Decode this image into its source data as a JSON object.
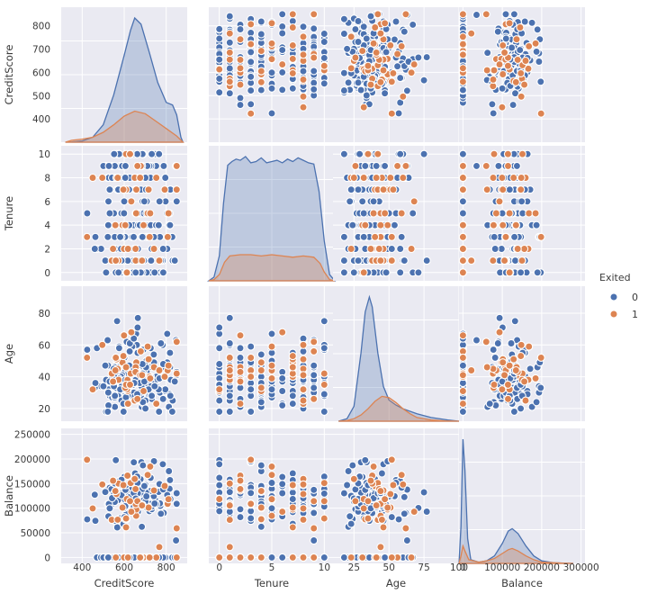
{
  "chart_data": {
    "type": "scatter",
    "title": "",
    "variables": [
      "CreditScore",
      "Tenure",
      "Age",
      "Balance"
    ],
    "ranges": {
      "CreditScore": [
        300,
        900
      ],
      "Tenure": [
        -1,
        11
      ],
      "Age": [
        10,
        100
      ],
      "Balance": [
        -10000,
        310000
      ]
    },
    "y_ranges": {
      "CreditScore": [
        300,
        880
      ],
      "Tenure": [
        -0.7,
        10.7
      ],
      "Age": [
        12,
        97
      ],
      "Balance": [
        -12000,
        262000
      ]
    },
    "ticks": {
      "CreditScore": [
        400,
        600,
        800
      ],
      "Tenure": [
        0,
        5,
        10
      ],
      "Age": [
        25,
        50,
        75,
        100
      ],
      "Balance": [
        0,
        100000,
        200000,
        300000
      ]
    },
    "y_ticks": {
      "CreditScore": [
        400,
        500,
        600,
        700,
        800
      ],
      "Tenure": [
        0,
        2,
        4,
        6,
        8,
        10
      ],
      "Age": [
        20,
        40,
        60,
        80
      ],
      "Balance": [
        0,
        50000,
        100000,
        150000,
        200000,
        250000
      ]
    },
    "x_tick_labels": [
      [
        "400",
        "600",
        "800"
      ],
      [
        "0",
        "5",
        "10"
      ],
      [
        "25",
        "50",
        "75",
        "100"
      ],
      [
        "0",
        "100000",
        "200000",
        "300000"
      ]
    ],
    "y_tick_labels": [
      [
        "400",
        "500",
        "600",
        "700",
        "800"
      ],
      [
        "0",
        "2",
        "4",
        "6",
        "8",
        "10"
      ],
      [
        "20",
        "40",
        "60",
        "80"
      ],
      [
        "0",
        "50000",
        "100000",
        "150000",
        "200000",
        "250000"
      ]
    ],
    "diagonal": {
      "type": "kde",
      "curves": {
        "CreditScore": {
          "0": [
            [
              320,
              0
            ],
            [
              350,
              0.003
            ],
            [
              400,
              0.01
            ],
            [
              450,
              0.04
            ],
            [
              500,
              0.14
            ],
            [
              550,
              0.38
            ],
            [
              600,
              0.7
            ],
            [
              630,
              0.9
            ],
            [
              650,
              1.0
            ],
            [
              680,
              0.95
            ],
            [
              720,
              0.72
            ],
            [
              760,
              0.48
            ],
            [
              800,
              0.32
            ],
            [
              830,
              0.3
            ],
            [
              850,
              0.22
            ],
            [
              870,
              0.04
            ],
            [
              880,
              0
            ]
          ],
          "1": [
            [
              320,
              0
            ],
            [
              350,
              0.015
            ],
            [
              400,
              0.025
            ],
            [
              450,
              0.04
            ],
            [
              500,
              0.08
            ],
            [
              550,
              0.14
            ],
            [
              600,
              0.21
            ],
            [
              650,
              0.25
            ],
            [
              700,
              0.23
            ],
            [
              750,
              0.17
            ],
            [
              800,
              0.11
            ],
            [
              850,
              0.05
            ],
            [
              880,
              0
            ]
          ]
        },
        "Tenure": {
          "0": [
            [
              -1,
              0
            ],
            [
              -0.5,
              0.03
            ],
            [
              0,
              0.2
            ],
            [
              0.4,
              0.62
            ],
            [
              0.8,
              0.93
            ],
            [
              1.2,
              0.96
            ],
            [
              1.6,
              0.98
            ],
            [
              2,
              0.97
            ],
            [
              2.5,
              1.0
            ],
            [
              3,
              0.95
            ],
            [
              3.5,
              0.96
            ],
            [
              4,
              0.99
            ],
            [
              4.5,
              0.95
            ],
            [
              5,
              0.96
            ],
            [
              5.5,
              0.97
            ],
            [
              6,
              0.95
            ],
            [
              6.5,
              0.98
            ],
            [
              7,
              0.96
            ],
            [
              7.5,
              0.99
            ],
            [
              8,
              0.97
            ],
            [
              8.5,
              0.95
            ],
            [
              9,
              0.94
            ],
            [
              9.5,
              0.72
            ],
            [
              10,
              0.32
            ],
            [
              10.5,
              0.05
            ],
            [
              11,
              0
            ]
          ],
          "1": [
            [
              -1,
              0
            ],
            [
              -0.5,
              0.01
            ],
            [
              0,
              0.05
            ],
            [
              0.5,
              0.15
            ],
            [
              1,
              0.2
            ],
            [
              2,
              0.21
            ],
            [
              3,
              0.21
            ],
            [
              4,
              0.2
            ],
            [
              5,
              0.21
            ],
            [
              6,
              0.2
            ],
            [
              7,
              0.19
            ],
            [
              8,
              0.2
            ],
            [
              9,
              0.19
            ],
            [
              9.6,
              0.14
            ],
            [
              10,
              0.07
            ],
            [
              10.5,
              0.01
            ],
            [
              11,
              0
            ]
          ]
        },
        "Age": {
          "0": [
            [
              14,
              0
            ],
            [
              20,
              0.02
            ],
            [
              25,
              0.12
            ],
            [
              30,
              0.55
            ],
            [
              33,
              0.88
            ],
            [
              36,
              1.0
            ],
            [
              38,
              0.92
            ],
            [
              42,
              0.55
            ],
            [
              46,
              0.28
            ],
            [
              50,
              0.17
            ],
            [
              55,
              0.13
            ],
            [
              60,
              0.1
            ],
            [
              70,
              0.06
            ],
            [
              80,
              0.03
            ],
            [
              92,
              0.01
            ],
            [
              100,
              0
            ]
          ],
          "1": [
            [
              14,
              0
            ],
            [
              20,
              0.005
            ],
            [
              25,
              0.02
            ],
            [
              30,
              0.05
            ],
            [
              35,
              0.1
            ],
            [
              40,
              0.16
            ],
            [
              45,
              0.2
            ],
            [
              50,
              0.19
            ],
            [
              55,
              0.15
            ],
            [
              60,
              0.1
            ],
            [
              65,
              0.06
            ],
            [
              70,
              0.03
            ],
            [
              80,
              0.01
            ],
            [
              90,
              0.003
            ],
            [
              100,
              0
            ]
          ]
        },
        "Balance": {
          "0": [
            [
              -10000,
              0
            ],
            [
              -5000,
              0.3
            ],
            [
              0,
              1.0
            ],
            [
              5000,
              0.75
            ],
            [
              12000,
              0.2
            ],
            [
              20000,
              0.03
            ],
            [
              40000,
              0.01
            ],
            [
              60000,
              0.02
            ],
            [
              80000,
              0.06
            ],
            [
              100000,
              0.16
            ],
            [
              115000,
              0.26
            ],
            [
              125000,
              0.28
            ],
            [
              140000,
              0.24
            ],
            [
              160000,
              0.14
            ],
            [
              180000,
              0.06
            ],
            [
              200000,
              0.02
            ],
            [
              230000,
              0.005
            ],
            [
              280000,
              0
            ]
          ],
          "1": [
            [
              -10000,
              0
            ],
            [
              -5000,
              0.06
            ],
            [
              0,
              0.14
            ],
            [
              5000,
              0.1
            ],
            [
              15000,
              0.03
            ],
            [
              40000,
              0.01
            ],
            [
              60000,
              0.02
            ],
            [
              80000,
              0.04
            ],
            [
              100000,
              0.08
            ],
            [
              115000,
              0.11
            ],
            [
              125000,
              0.12
            ],
            [
              140000,
              0.1
            ],
            [
              160000,
              0.06
            ],
            [
              180000,
              0.03
            ],
            [
              200000,
              0.01
            ],
            [
              250000,
              0.002
            ],
            [
              280000,
              0
            ]
          ]
        }
      }
    },
    "series": [
      {
        "name": "0",
        "color": "#4c72b0"
      },
      {
        "name": "1",
        "color": "#dd8452"
      }
    ],
    "legend": {
      "title": "Exited",
      "labels": [
        "0",
        "1"
      ],
      "position": "right-center"
    },
    "grid": true,
    "seed": 7,
    "samples_per_series": {
      "0": 170,
      "1": 45
    }
  }
}
